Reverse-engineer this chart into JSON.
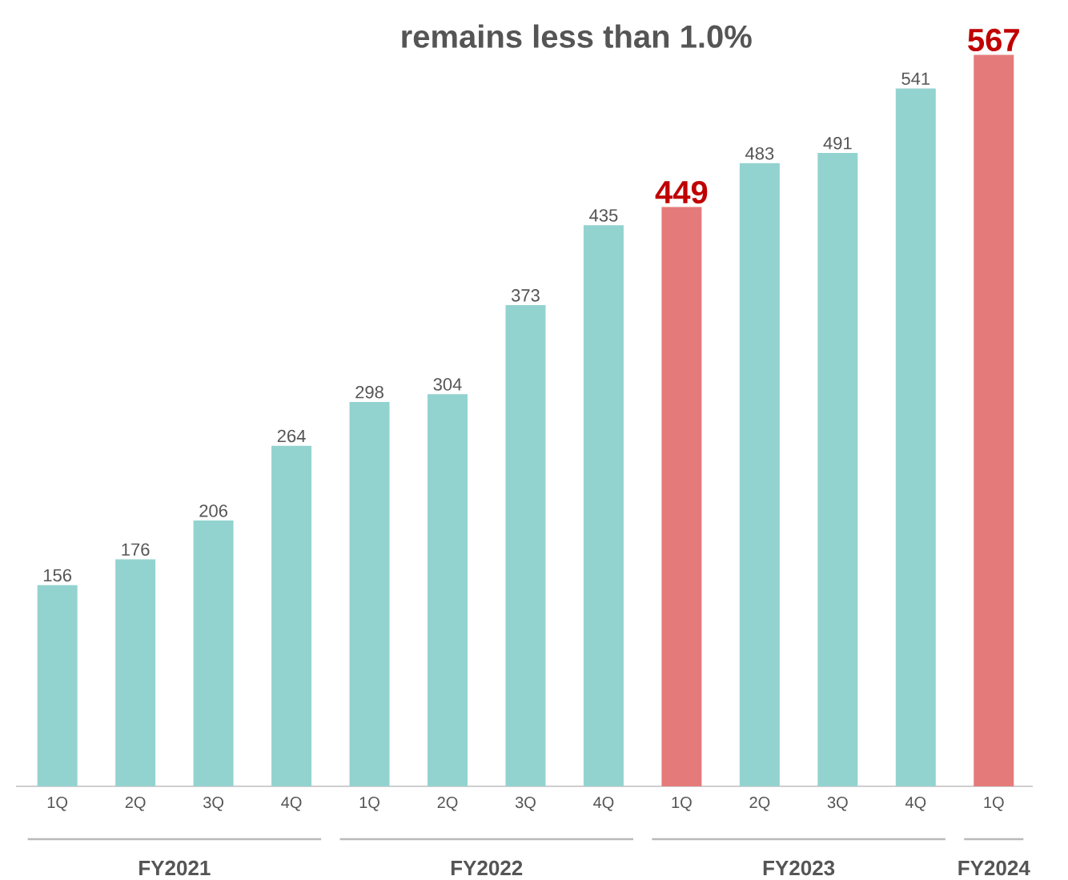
{
  "chart_data": {
    "type": "bar",
    "title": "remains less than 1.0%",
    "categories": [
      "1Q",
      "2Q",
      "3Q",
      "4Q",
      "1Q",
      "2Q",
      "3Q",
      "4Q",
      "1Q",
      "2Q",
      "3Q",
      "4Q",
      "1Q"
    ],
    "values": [
      156,
      176,
      206,
      264,
      298,
      304,
      373,
      435,
      449,
      483,
      491,
      541,
      567
    ],
    "colors": [
      "#93d3cf",
      "#93d3cf",
      "#93d3cf",
      "#93d3cf",
      "#93d3cf",
      "#93d3cf",
      "#93d3cf",
      "#93d3cf",
      "#e57a7a",
      "#93d3cf",
      "#93d3cf",
      "#93d3cf",
      "#e57a7a"
    ],
    "data_labels": true,
    "annotations": [
      "FY2021",
      "FY2022",
      "FY2023",
      "FY2024"
    ]
  }
}
